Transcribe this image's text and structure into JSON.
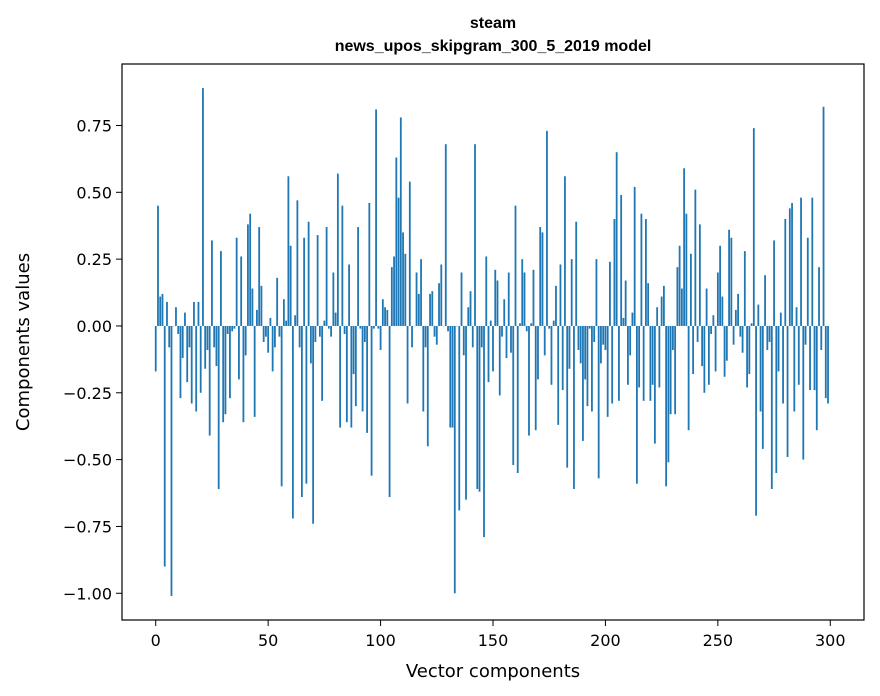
{
  "chart_data": {
    "type": "bar",
    "title": "steam",
    "subtitle": "news_upos_skipgram_300_5_2019 model",
    "xlabel": "Vector components",
    "ylabel": "Components values",
    "xlim": [
      -15,
      315
    ],
    "ylim": [
      -1.1,
      0.98
    ],
    "xticks": [
      0,
      50,
      100,
      150,
      200,
      250,
      300
    ],
    "yticks": [
      -1.0,
      -0.75,
      -0.5,
      -0.25,
      0.0,
      0.25,
      0.5,
      0.75
    ],
    "ytick_labels": [
      "−1.00",
      "−0.75",
      "−0.50",
      "−0.25",
      "0.00",
      "0.25",
      "0.50",
      "0.75"
    ],
    "grid": false,
    "bar_color": "#1f77b4",
    "values": [
      -0.17,
      0.45,
      0.11,
      0.12,
      -0.9,
      0.09,
      -0.08,
      -1.01,
      0.0,
      0.07,
      -0.03,
      -0.27,
      -0.12,
      0.05,
      -0.21,
      -0.08,
      -0.29,
      0.09,
      -0.32,
      0.09,
      -0.25,
      0.89,
      -0.16,
      -0.09,
      -0.41,
      0.32,
      -0.08,
      -0.15,
      -0.61,
      0.28,
      -0.36,
      -0.33,
      -0.03,
      -0.27,
      -0.02,
      -0.01,
      0.33,
      -0.2,
      0.26,
      -0.36,
      -0.11,
      0.38,
      0.42,
      0.14,
      -0.34,
      0.06,
      0.37,
      0.15,
      -0.06,
      -0.04,
      -0.1,
      0.03,
      -0.17,
      -0.08,
      0.18,
      -0.04,
      -0.6,
      0.1,
      0.02,
      0.56,
      0.3,
      -0.72,
      0.04,
      0.47,
      -0.08,
      -0.64,
      0.33,
      -0.59,
      0.39,
      -0.14,
      -0.74,
      -0.06,
      0.34,
      -0.04,
      -0.28,
      0.02,
      0.37,
      -0.01,
      -0.04,
      0.2,
      0.05,
      0.57,
      -0.38,
      0.45,
      -0.03,
      -0.36,
      0.23,
      -0.38,
      -0.18,
      -0.3,
      0.37,
      -0.01,
      -0.32,
      -0.06,
      -0.4,
      0.46,
      -0.56,
      -0.01,
      0.81,
      -0.01,
      -0.09,
      0.1,
      0.07,
      0.06,
      -0.64,
      0.22,
      0.26,
      0.63,
      0.48,
      0.78,
      0.35,
      0.27,
      -0.29,
      0.54,
      -0.08,
      0.0,
      0.2,
      0.12,
      0.25,
      -0.32,
      -0.08,
      -0.45,
      0.12,
      0.13,
      -0.04,
      -0.07,
      0.16,
      0.23,
      0.0,
      0.68,
      -0.02,
      -0.38,
      -0.38,
      -1.0,
      0.0,
      -0.69,
      0.2,
      -0.11,
      -0.65,
      0.07,
      0.13,
      -0.08,
      0.68,
      -0.61,
      -0.62,
      -0.08,
      -0.79,
      0.26,
      -0.21,
      0.02,
      -0.17,
      0.21,
      0.17,
      -0.26,
      -0.04,
      0.1,
      -0.12,
      0.2,
      -0.1,
      -0.52,
      0.45,
      -0.55,
      0.01,
      0.25,
      0.2,
      -0.02,
      -0.41,
      0.01,
      0.21,
      -0.39,
      -0.2,
      0.37,
      0.35,
      -0.11,
      0.73,
      -0.01,
      -0.22,
      0.02,
      0.15,
      -0.37,
      0.23,
      -0.24,
      0.56,
      -0.53,
      -0.16,
      0.25,
      -0.61,
      0.39,
      -0.09,
      -0.14,
      -0.43,
      -0.2,
      -0.3,
      -0.01,
      -0.32,
      -0.06,
      0.25,
      -0.57,
      -0.14,
      -0.07,
      -0.09,
      -0.34,
      0.24,
      -0.29,
      0.4,
      0.65,
      -0.28,
      0.49,
      0.03,
      0.17,
      -0.22,
      -0.11,
      0.05,
      0.52,
      -0.59,
      -0.23,
      0.42,
      -0.28,
      0.4,
      0.16,
      -0.28,
      -0.22,
      -0.44,
      0.07,
      -0.23,
      0.11,
      0.15,
      -0.6,
      -0.51,
      -0.33,
      -0.09,
      -0.33,
      0.22,
      0.3,
      0.14,
      0.59,
      0.42,
      -0.39,
      0.27,
      -0.18,
      0.51,
      -0.06,
      0.38,
      -0.15,
      -0.25,
      0.14,
      -0.22,
      -0.03,
      0.04,
      -0.17,
      0.2,
      0.3,
      0.11,
      -0.19,
      -0.13,
      0.36,
      0.33,
      -0.07,
      0.06,
      0.12,
      -0.04,
      -0.1,
      0.28,
      -0.23,
      -0.18,
      0.01,
      0.74,
      -0.71,
      0.08,
      -0.32,
      -0.46,
      0.19,
      -0.09,
      -0.06,
      -0.61,
      0.32,
      -0.55,
      -0.17,
      0.05,
      -0.29,
      0.4,
      -0.49,
      0.44,
      0.46,
      -0.32,
      0.07,
      -0.22,
      0.48,
      -0.5,
      -0.07,
      0.33,
      -0.24,
      0.48,
      -0.24,
      -0.39,
      0.22,
      -0.09,
      0.82,
      -0.27,
      -0.29
    ]
  }
}
